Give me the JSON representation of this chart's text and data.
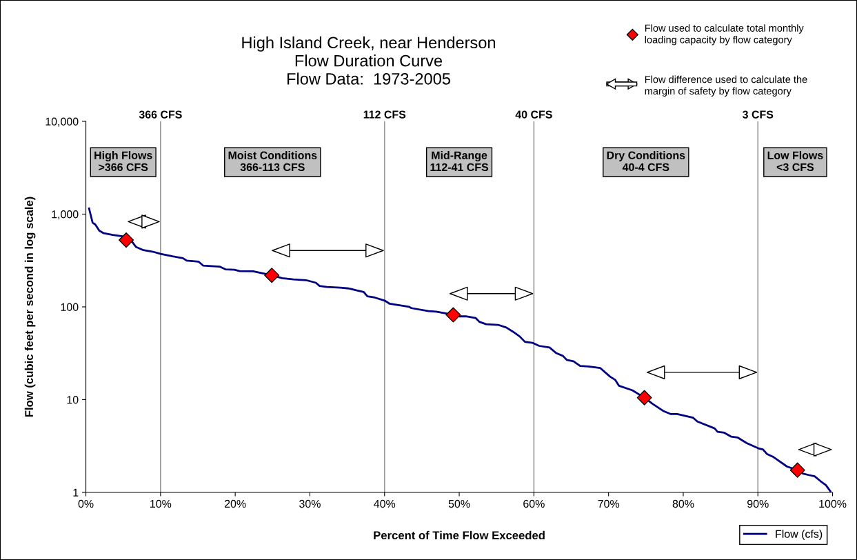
{
  "chart_data": {
    "type": "line",
    "title": "High Island Creek, near Henderson\nFlow Duration Curve\nFlow Data:  1973-2005",
    "xlabel": "Percent of Time Flow Exceeded",
    "ylabel": "Flow (cubic feet per second in log scale)",
    "log": "y",
    "xlim": [
      0,
      100
    ],
    "ylim": [
      1,
      10000
    ],
    "xticks": [
      {
        "value": 0,
        "label": "0%"
      },
      {
        "value": 10,
        "label": "10%"
      },
      {
        "value": 20,
        "label": "20%"
      },
      {
        "value": 30,
        "label": "30%"
      },
      {
        "value": 40,
        "label": "40%"
      },
      {
        "value": 50,
        "label": "50%"
      },
      {
        "value": 60,
        "label": "60%"
      },
      {
        "value": 70,
        "label": "70%"
      },
      {
        "value": 80,
        "label": "80%"
      },
      {
        "value": 90,
        "label": "90%"
      },
      {
        "value": 100,
        "label": "100%"
      }
    ],
    "yticks": [
      1,
      10,
      100,
      {
        "value": 1000,
        "label": "1,000"
      },
      {
        "value": 10000,
        "label": "10,000"
      }
    ],
    "grid": false,
    "legend": "right",
    "series": [
      {
        "name": "Flow (cfs)",
        "color": "#000080",
        "marker": "none",
        "x": [
          0.43,
          0.9,
          1.26,
          1.8,
          2.4,
          3.6,
          4.9,
          6.2,
          6.7,
          7.7,
          9.0,
          10,
          11.6,
          13,
          13.5,
          15.1,
          15.7,
          17.9,
          18.7,
          19.9,
          20.6,
          22.4,
          24.9,
          26.3,
          27.8,
          29.5,
          30.8,
          31.3,
          32.3,
          34.1,
          35.2,
          36.2,
          37.2,
          37.7,
          38.7,
          40,
          40.7,
          41.7,
          43.3,
          43.6,
          45.9,
          46.9,
          48.2,
          50,
          50.9,
          52.2,
          52.7,
          53.6,
          55.2,
          56.3,
          57.2,
          58.1,
          58.8,
          59.8,
          60.7,
          62.1,
          63,
          63.9,
          64.4,
          65.3,
          66.2,
          67.3,
          68.9,
          70.2,
          70.9,
          71.4,
          73.2,
          74.8,
          75.9,
          77.4,
          78.3,
          79.2,
          81.3,
          81.9,
          84.2,
          84.6,
          85.5,
          86.4,
          87.3,
          88.5,
          90,
          90.7,
          91.2,
          92.1,
          93.9,
          95.3,
          96,
          96.8,
          97.6,
          98.4,
          99.1,
          99.7
        ],
        "values": [
          1150,
          810,
          773,
          662,
          622,
          597,
          577,
          503,
          444,
          409,
          393,
          373,
          351,
          335,
          315,
          307,
          279,
          272,
          254,
          251,
          243,
          242,
          219,
          204,
          198,
          194,
          182,
          168,
          164,
          161,
          158,
          151,
          145,
          130,
          126,
          117,
          108,
          105,
          100,
          97,
          90,
          89,
          85,
          79,
          79,
          76,
          69,
          65,
          64,
          60,
          54,
          48,
          42,
          41,
          38,
          36.5,
          31.7,
          29.6,
          26.8,
          25.9,
          23.1,
          22.8,
          21.9,
          17.7,
          16.3,
          14.1,
          12.6,
          10.5,
          9.0,
          7.5,
          7.0,
          7.0,
          6.4,
          5.8,
          4.9,
          4.5,
          4.4,
          4.0,
          3.9,
          3.4,
          3.0,
          2.9,
          2.6,
          2.4,
          1.9,
          1.74,
          1.6,
          1.54,
          1.49,
          1.32,
          1.2,
          1.03
        ]
      },
      {
        "name": "Flow used to calculate total monthly\nloading capacity by flow category",
        "type": "scatter",
        "color": "#ff0000",
        "marker": "diamond",
        "x": [
          5.4,
          24.9,
          49.2,
          74.8,
          95.3
        ],
        "values": [
          525,
          219,
          82,
          10.5,
          1.74
        ]
      }
    ],
    "ref_lines": [
      {
        "axis": "x",
        "value": 10,
        "label": "366 CFS",
        "color": "#999999"
      },
      {
        "axis": "x",
        "value": 40,
        "label": "112 CFS",
        "color": "#999999"
      },
      {
        "axis": "x",
        "value": 60,
        "label": "40 CFS",
        "color": "#999999"
      },
      {
        "axis": "x",
        "value": 90,
        "label": "3 CFS",
        "color": "#999999"
      }
    ],
    "annotations": [
      "High Flows\n>366 CFS",
      "Moist Conditions\n366-113 CFS",
      "Mid-Range\n112-41 CFS",
      "Dry Conditions\n40-4 CFS",
      "Low Flows\n<3 CFS",
      "Flow difference used to calculate the\nmargin of safety by flow category"
    ]
  }
}
